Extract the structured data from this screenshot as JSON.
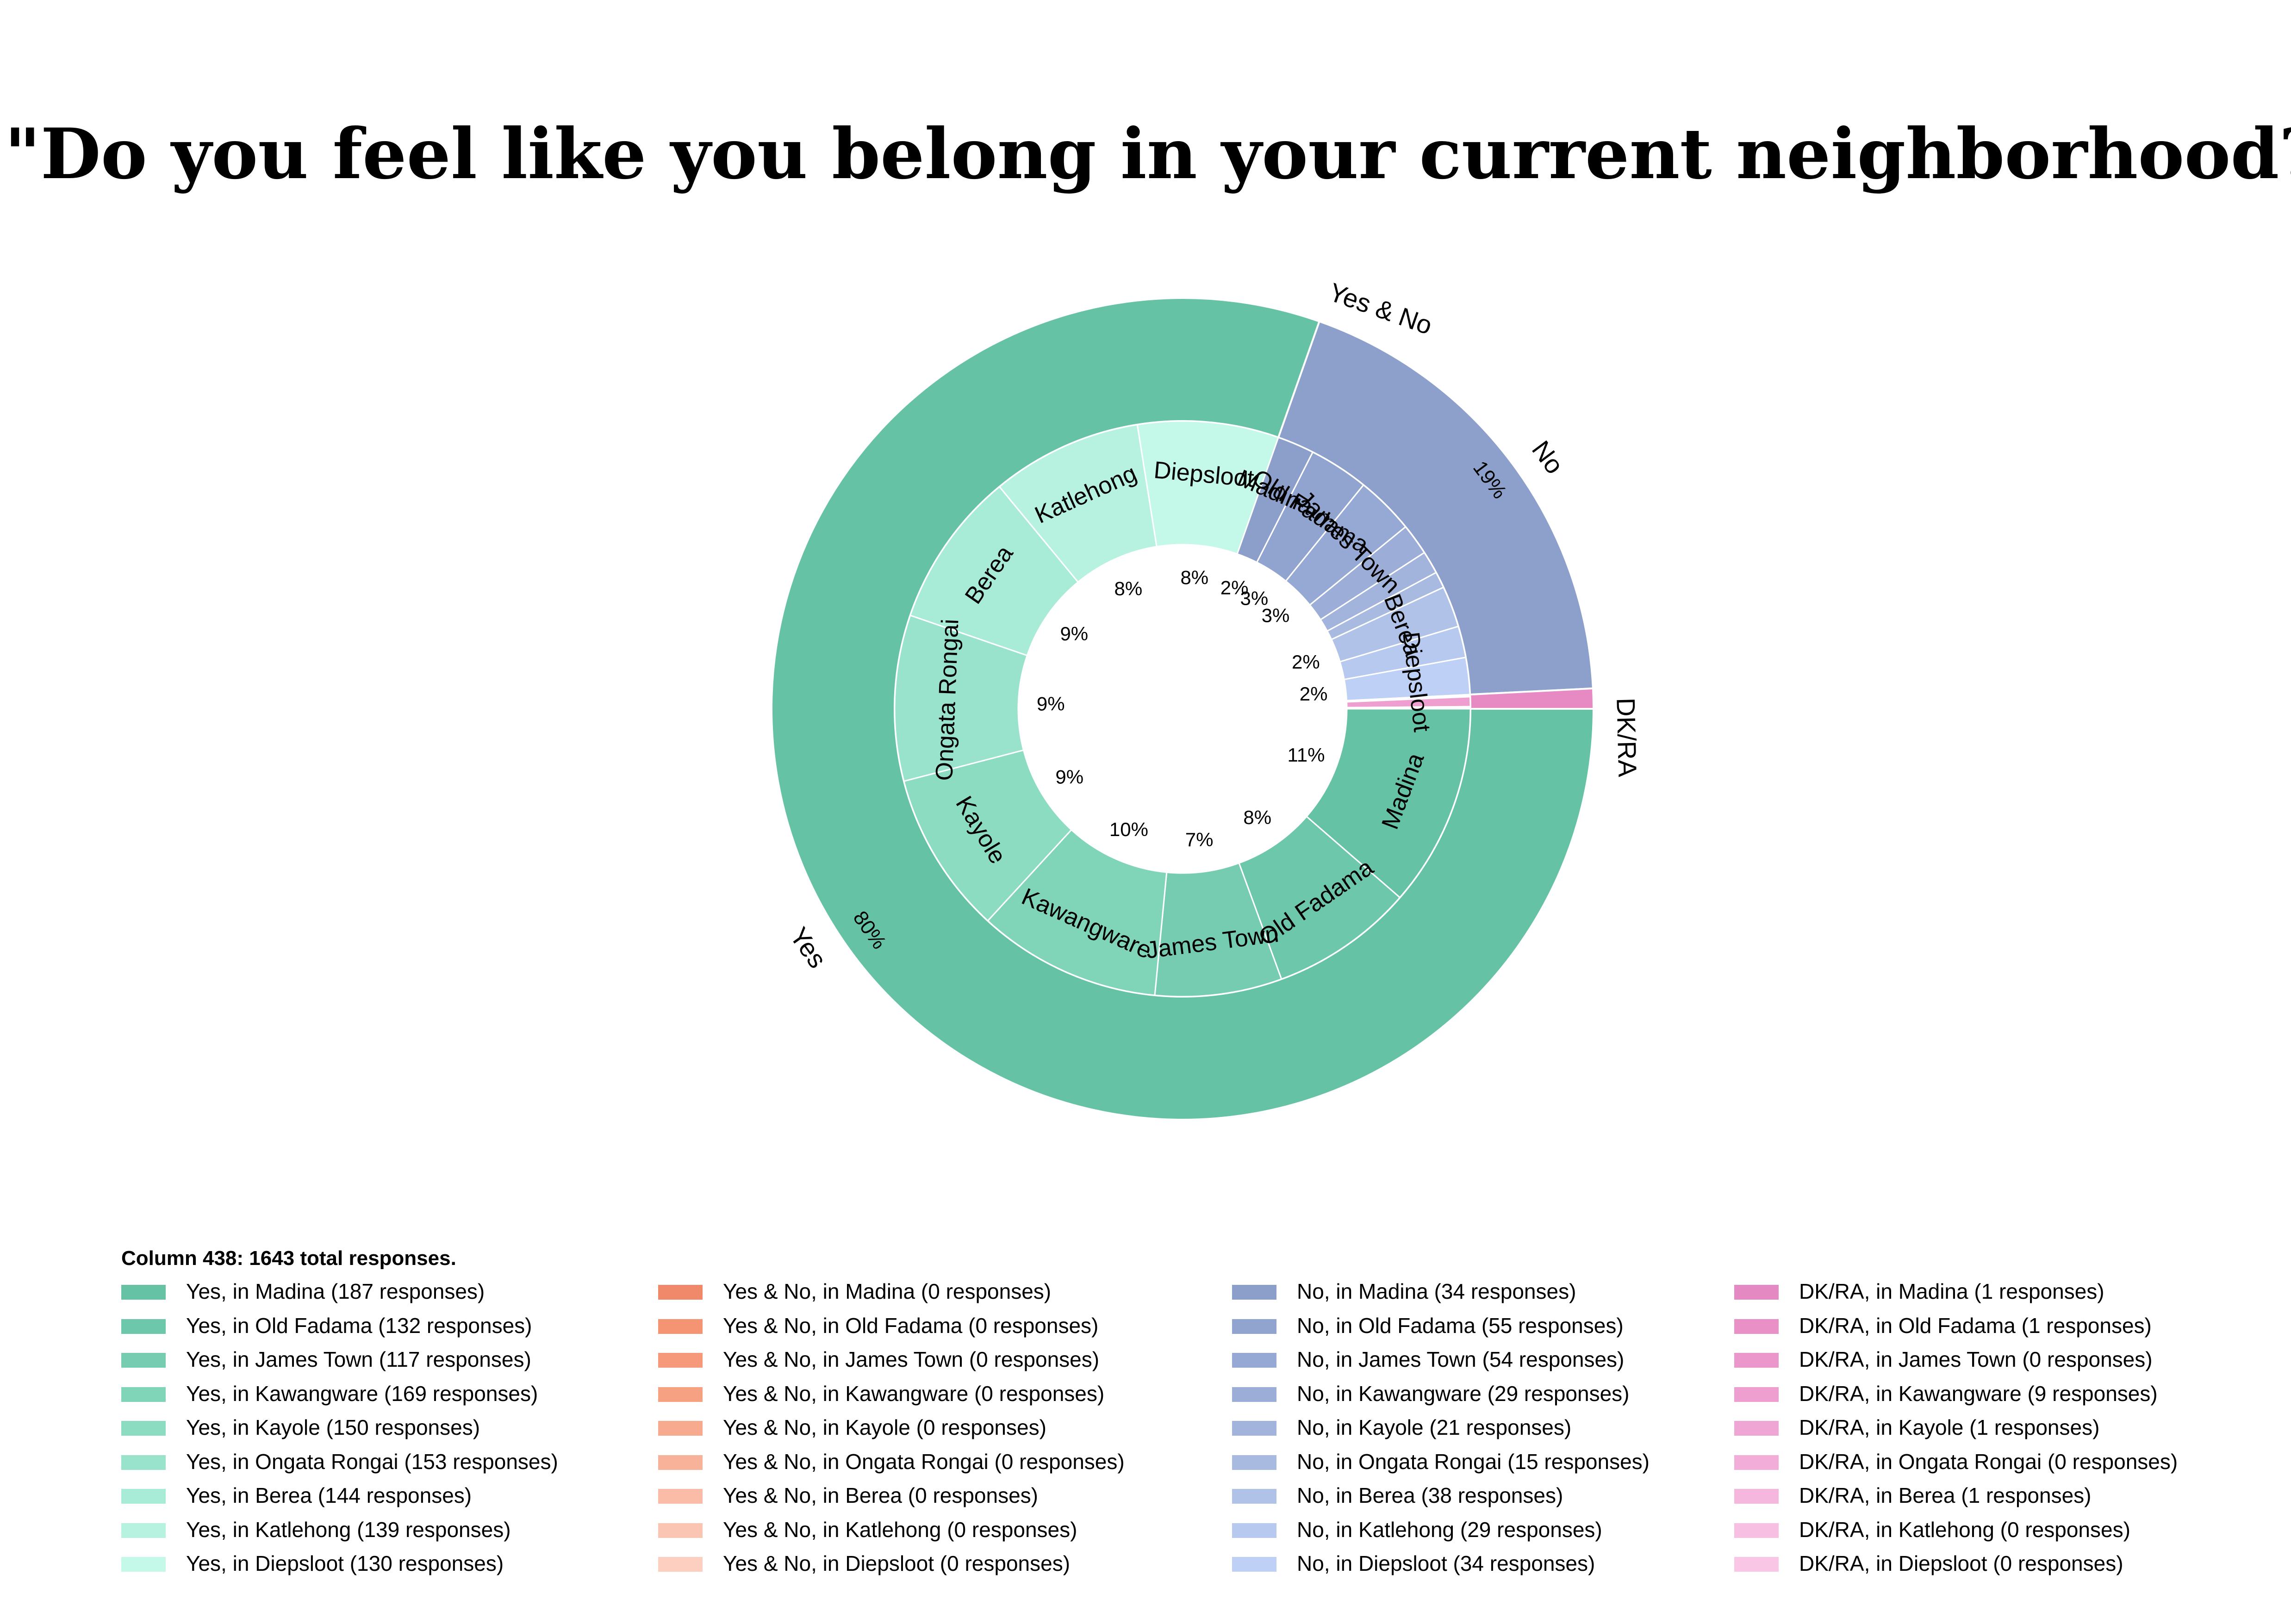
{
  "chart_data": {
    "type": "pie",
    "subtype": "nested-donut",
    "title": "\"Do you feel like you belong in your current neighborhood?\"",
    "note": "Column 438: 1643 total responses.",
    "total": 1643,
    "categories": [
      "Madina",
      "Old Fadama",
      "James Town",
      "Kawangware",
      "Kayole",
      "Ongata Rongai",
      "Berea",
      "Katlehong",
      "Diepsloot"
    ],
    "outer": [
      {
        "name": "Yes",
        "value": 1321,
        "pct_label": "80%",
        "color": "#66c2a5"
      },
      {
        "name": "Yes & No",
        "value": 0,
        "pct_label": "",
        "color": "#fc8d62"
      },
      {
        "name": "No",
        "value": 309,
        "pct_label": "19%",
        "color": "#8da0cb"
      },
      {
        "name": "DK/RA",
        "value": 13,
        "pct_label": "",
        "color": "#e78ac3"
      }
    ],
    "series": [
      {
        "name": "Yes",
        "values": [
          187,
          132,
          117,
          169,
          150,
          153,
          144,
          139,
          130
        ],
        "colors": [
          "#66c2a5",
          "#6dc7aa",
          "#76ccb0",
          "#80d4b8",
          "#8cdcc2",
          "#99e3cc",
          "#a8ebd6",
          "#b7f2e0",
          "#c4f8e8"
        ],
        "pct_labels": [
          "11%",
          "8%",
          "7%",
          "10%",
          "9%",
          "9%",
          "9%",
          "8%",
          "8%"
        ]
      },
      {
        "name": "Yes & No",
        "values": [
          0,
          0,
          0,
          0,
          0,
          0,
          0,
          0,
          0
        ],
        "colors": [
          "#f0896a",
          "#f49473",
          "#f6997a",
          "#f7a183",
          "#f8aa8e",
          "#f9b29a",
          "#fabca7",
          "#fbc5b3",
          "#fccfc0"
        ],
        "pct_labels": [
          "",
          "",
          "",
          "",
          "",
          "",
          "",
          "",
          ""
        ]
      },
      {
        "name": "No",
        "values": [
          34,
          55,
          54,
          29,
          21,
          15,
          38,
          29,
          34
        ],
        "colors": [
          "#8c9fcb",
          "#91a4d0",
          "#96a9d4",
          "#9caed8",
          "#a2b4dc",
          "#a8baE0",
          "#b0c2e8",
          "#b7c9ee",
          "#bfd0f6"
        ],
        "pct_labels": [
          "2%",
          "3%",
          "3%",
          "",
          "",
          "",
          "2%",
          "",
          "2%"
        ]
      },
      {
        "name": "DK/RA",
        "values": [
          1,
          1,
          0,
          9,
          1,
          0,
          1,
          0,
          0
        ],
        "colors": [
          "#e589c2",
          "#e991c7",
          "#ec97cb",
          "#ee9ecf",
          "#f0a6d4",
          "#f2aed8",
          "#f5b7dd",
          "#f7bfe2",
          "#f9c6e6"
        ],
        "pct_labels": [
          "",
          "",
          "",
          "",
          "",
          "",
          "",
          "",
          ""
        ]
      }
    ],
    "inner_labels": {
      "Yes": [
        "Madina",
        "Old Fadama",
        "James Town",
        "Kawangware",
        "Kayole",
        "Ongata Rongai",
        "Berea",
        "Katlehong",
        "Diepsloot"
      ],
      "No": [
        "Madina",
        "Old Fadama",
        "James Town",
        "",
        "",
        "",
        "Berea",
        "",
        "Diepsloot"
      ]
    },
    "legend": [
      [
        "Yes, in Madina (187 responses)",
        "Yes, in Old Fadama (132 responses)",
        "Yes, in James Town (117 responses)",
        "Yes, in Kawangware (169 responses)",
        "Yes, in Kayole (150 responses)",
        "Yes, in Ongata Rongai (153 responses)",
        "Yes, in Berea (144 responses)",
        "Yes, in Katlehong (139 responses)",
        "Yes, in Diepsloot (130 responses)"
      ],
      [
        "Yes & No, in Madina (0 responses)",
        "Yes & No, in Old Fadama (0 responses)",
        "Yes & No, in James Town (0 responses)",
        "Yes & No, in Kawangware (0 responses)",
        "Yes & No, in Kayole (0 responses)",
        "Yes & No, in Ongata Rongai (0 responses)",
        "Yes & No, in Berea (0 responses)",
        "Yes & No, in Katlehong (0 responses)",
        "Yes & No, in Diepsloot (0 responses)"
      ],
      [
        "No, in Madina (34 responses)",
        "No, in Old Fadama (55 responses)",
        "No, in James Town (54 responses)",
        "No, in Kawangware (29 responses)",
        "No, in Kayole (21 responses)",
        "No, in Ongata Rongai (15 responses)",
        "No, in Berea (38 responses)",
        "No, in Katlehong (29 responses)",
        "No, in Diepsloot (34 responses)"
      ],
      [
        "DK/RA, in Madina (1 responses)",
        "DK/RA, in Old Fadama (1 responses)",
        "DK/RA, in James Town (0 responses)",
        "DK/RA, in Kawangware (9 responses)",
        "DK/RA, in Kayole (1 responses)",
        "DK/RA, in Ongata Rongai (0 responses)",
        "DK/RA, in Berea (1 responses)",
        "DK/RA, in Katlehong (0 responses)",
        "DK/RA, in Diepsloot (0 responses)"
      ]
    ]
  }
}
